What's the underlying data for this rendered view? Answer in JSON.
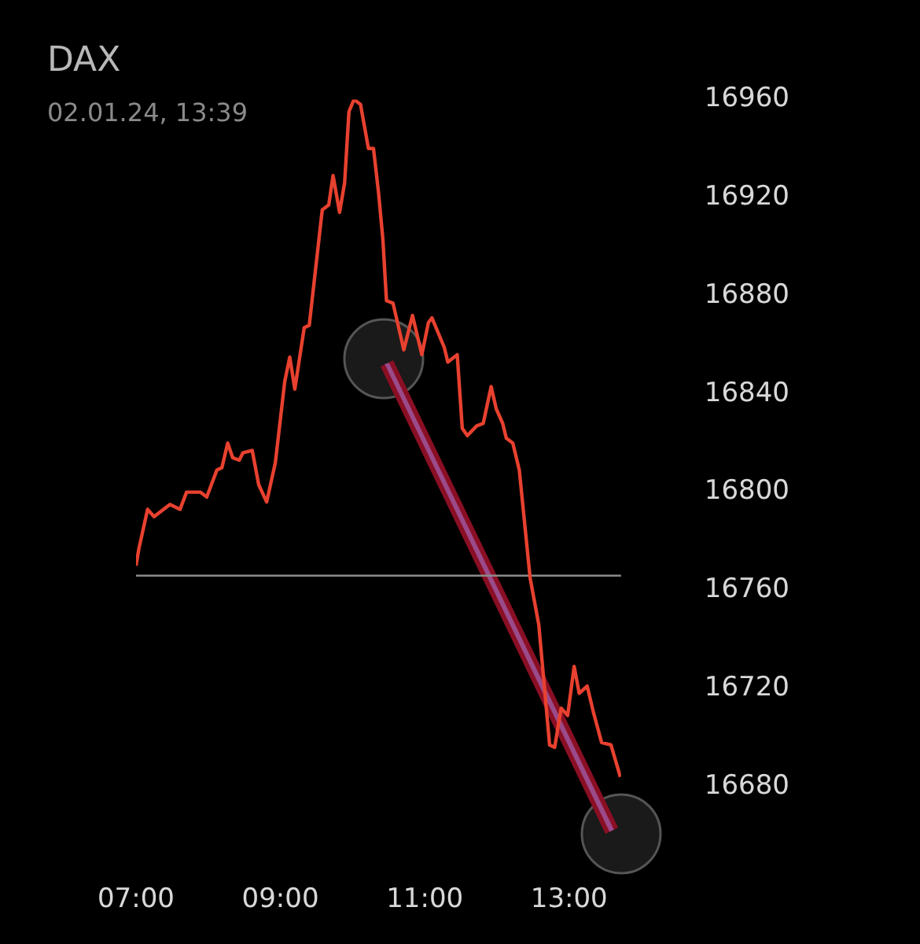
{
  "chart_data": {
    "type": "line",
    "title": "DAX",
    "subtitle": "02.01.24, 13:39",
    "x": [
      7,
      7.04,
      7.16,
      7.25,
      7.47,
      7.61,
      7.7,
      7.8,
      7.89,
      7.98,
      8.12,
      8.19,
      8.27,
      8.34,
      8.43,
      8.48,
      8.61,
      8.7,
      8.81,
      8.93,
      9.06,
      9.13,
      9.2,
      9.33,
      9.4,
      9.58,
      9.67,
      9.73,
      9.82,
      9.89,
      9.95,
      10.02,
      10.11,
      10.22,
      10.29,
      10.36,
      10.42,
      10.47,
      10.56,
      10.71,
      10.83,
      10.96,
      11.05,
      11.1,
      11.27,
      11.32,
      11.45,
      11.52,
      11.59,
      11.72,
      11.81,
      11.92,
      11.99,
      12.08,
      12.13,
      12.22,
      12.31,
      12.46,
      12.58,
      12.73,
      12.8,
      12.89,
      12.98,
      13.07,
      13.14,
      13.25,
      13.34,
      13.45,
      13.58,
      13.71
    ],
    "series": [
      {
        "color": "#e8412f",
        "values": [
          16770,
          16777,
          16793,
          16790,
          16795,
          16793,
          16800,
          16800,
          16800,
          16798,
          16809,
          16810,
          16820,
          16814,
          16813,
          16816,
          16817,
          16803,
          16796,
          16812,
          16845,
          16855,
          16842,
          16867,
          16868,
          16915,
          16917,
          16929,
          16914,
          16926,
          16955,
          16960,
          16958,
          16940,
          16940,
          16922,
          16903,
          16878,
          16877,
          16858,
          16872,
          16856,
          16869,
          16871,
          16859,
          16853,
          16856,
          16826,
          16823,
          16827,
          16828,
          16843,
          16834,
          16828,
          16822,
          16820,
          16809,
          16765,
          16746,
          16697,
          16696,
          16712,
          16709,
          16729,
          16718,
          16721,
          16710,
          16698,
          16697,
          16684
        ]
      }
    ],
    "xlim": [
      7,
      13.72
    ],
    "xticks": [
      {
        "value": 7,
        "label": "07:00"
      },
      {
        "value": 9,
        "label": "09:00"
      },
      {
        "value": 11,
        "label": "11:00"
      },
      {
        "value": 13,
        "label": "13:00"
      }
    ],
    "ylim": [
      16680,
      16960
    ],
    "yticks": [
      16680,
      16720,
      16760,
      16800,
      16840,
      16880,
      16920,
      16960
    ],
    "ref_lines": [
      {
        "axis": "y",
        "value": 16766,
        "color": "#8a8a8a"
      }
    ],
    "legend": false,
    "marker": "none",
    "line_style": "solid"
  }
}
